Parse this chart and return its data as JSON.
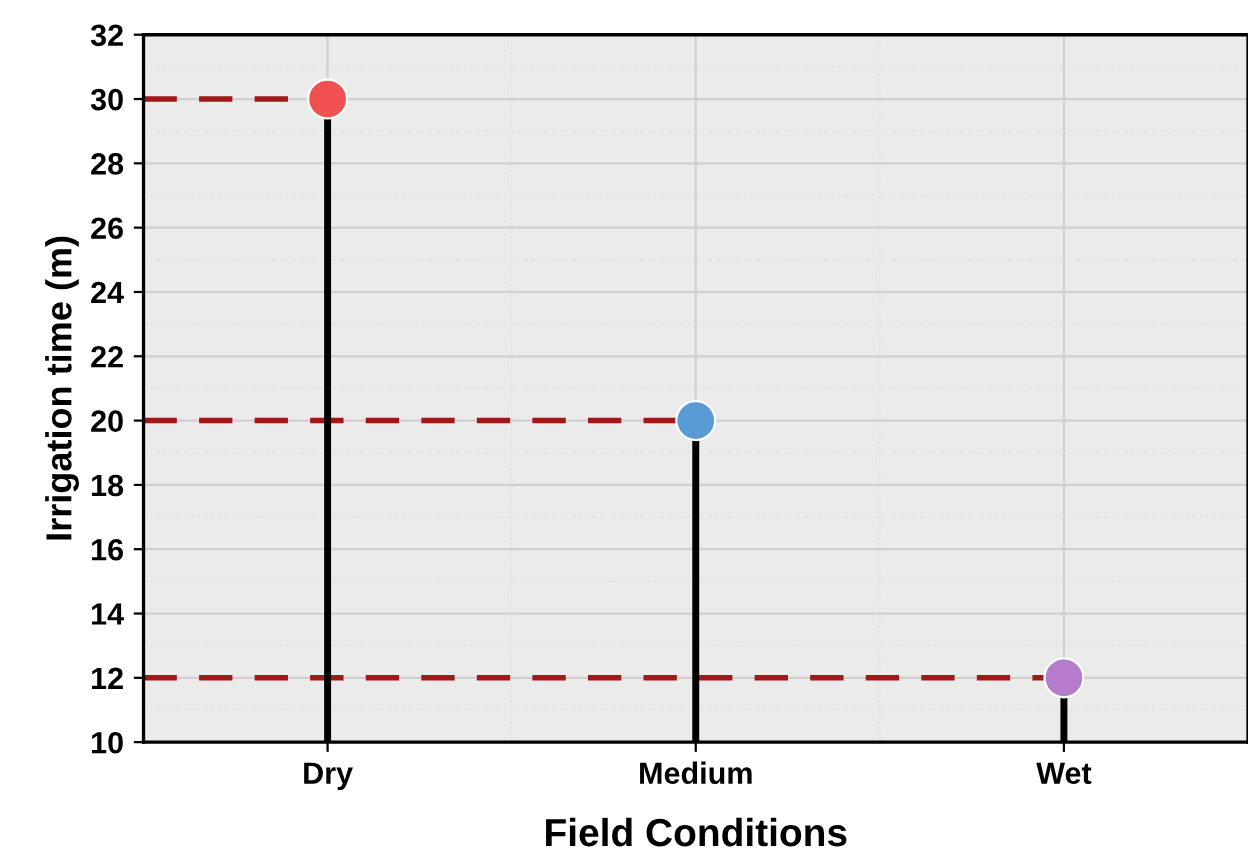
{
  "chart_data": {
    "type": "lollipop",
    "xlabel": "Field Conditions",
    "ylabel": "Irrigation time (m)",
    "categories": [
      "Dry",
      "Medium",
      "Wet"
    ],
    "values": [
      30,
      20,
      12
    ],
    "colors": [
      "#f05050",
      "#5b9bd5",
      "#b57ccc"
    ],
    "ylim": [
      10,
      32
    ],
    "yticks": [
      10,
      12,
      14,
      16,
      18,
      20,
      22,
      24,
      26,
      28,
      30,
      32
    ],
    "grid": true,
    "marker": "circle",
    "ref_lines": [
      {
        "axis": "y",
        "value": 30,
        "color": "#a01818",
        "line_style": "dashed"
      },
      {
        "axis": "y",
        "value": 20,
        "color": "#a01818",
        "line_style": "dashed"
      },
      {
        "axis": "y",
        "value": 12,
        "color": "#a01818",
        "line_style": "dashed"
      }
    ]
  }
}
